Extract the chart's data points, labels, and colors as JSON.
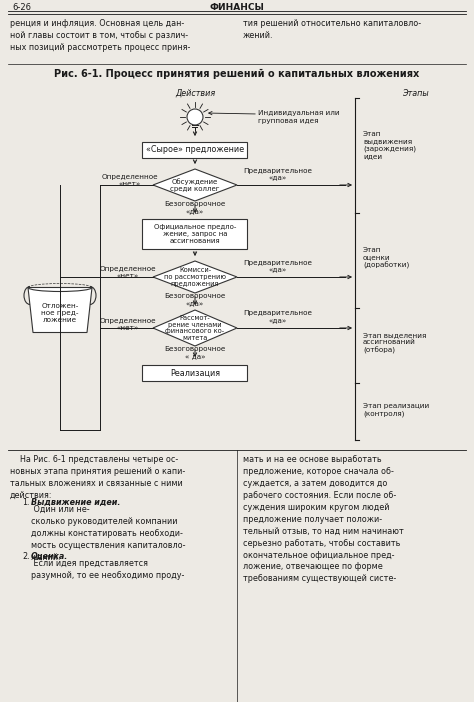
{
  "page_header_left": "6-26",
  "page_header_center": "ФИНАНСЫ",
  "top_text_left": "ренция и инфляция. Основная цель дан-\nной главы состоит в том, чтобы с различ-\nных позиций рассмотреть процесс приня-",
  "top_text_right": "тия решений относительно капиталовло-\nжений.",
  "figure_title": "Рис. 6-1. Процесс принятия решений о капитальных вложениях",
  "label_actions": "Действия",
  "label_stages": "Этапы",
  "idea_label": "Индивидуальная или\nгрупповая идея",
  "box1": "«Сырое» предложение",
  "diamond1": "Обсуждение\nсреди коллег",
  "box2": "Официальное предло-\nжение, запрос на\nассигнования",
  "diamond2": "Комисси-\nпо рассмотрению\nпредложения",
  "diamond3": "Рассмот-\nрение членами\nфинансового ко-\nмитета",
  "box3": "Реализация",
  "stage1": "Этап\nвыдвижения\n(зарождения)\nидеи",
  "stage2": "Этап\nоценки\n(доработки)",
  "stage3": "Этап выделения\nассигнований\n(отбора)",
  "stage4": "Этап реализации\n(контроля)",
  "label_no1": "Определенное\n«нет»",
  "label_yes1": "Предварительное\n«да»",
  "label_uncon1": "Безоговорочное\n«да»",
  "label_no2": "Определенное\n«нет»",
  "label_yes2": "Предварительное\n«да»",
  "label_uncon2": "Безоговорочное\n«да»",
  "label_no3": "Определенное\n«нет»",
  "label_yes3": "Предварительное\n«да»",
  "label_uncon3": "Безоговорочное\n« да»",
  "deferred": "Отложен-\nное пред-\nложение",
  "bottom_text_left": "    На Рис. 6-1 представлены четыре ос-\nновных этапа принятия решений о капи-\nтальных вложениях и связанные с ними\nдействия:",
  "bottom_item1_label": "Выдвижение идеи.",
  "bottom_item1_text": " Один или не-\nсколько руководителей компании\nдолжны констатировать необходи-\nмость осуществления капиталовло-\nжений.",
  "bottom_item2_label": "Оценка.",
  "bottom_item2_text": " Если идея представляется\nразумной, то ее необходимо проду-",
  "bottom_text_right": "мать и на ее основе выработать\nпредложение, которое сначала об-\nсуждается, а затем доводится до\nрабочего состояния. Если после об-\nсуждения широким кругом людей\nпредложение получает положи-\nтельный отзыв, то над ним начинают\nсерьезно работать, чтобы составить\nокончательное официальное пред-\nложение, отвечающее по форме\nтребованиям существующей систе-",
  "bg_color": "#edeae4",
  "text_color": "#1a1a1a",
  "box_color": "#ffffff",
  "box_border": "#333333"
}
